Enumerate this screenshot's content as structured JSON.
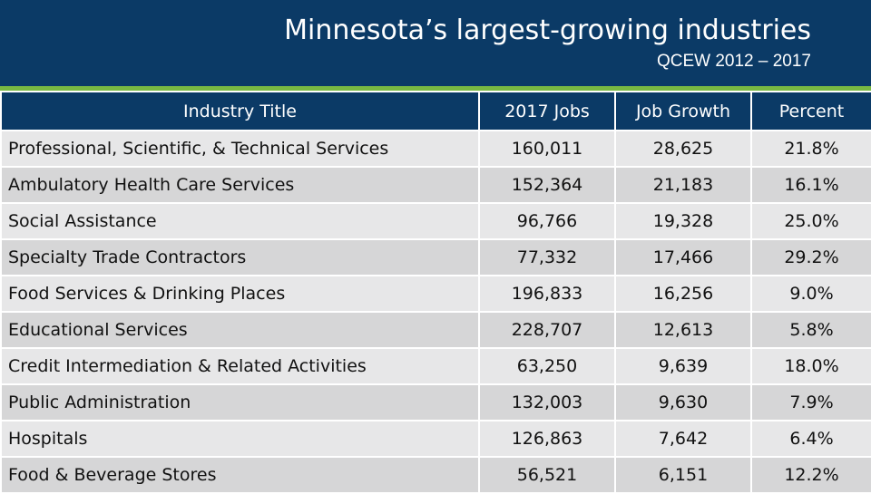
{
  "header": {
    "title": "Minnesota’s largest-growing industries",
    "subtitle": "QCEW 2012 – 2017"
  },
  "colors": {
    "banner": "#0b3a66",
    "accent_rule": "#78b842",
    "row_light": "#e7e7e8",
    "row_dark": "#d6d6d7"
  },
  "table": {
    "columns": [
      "Industry Title",
      "2017 Jobs",
      "Job Growth",
      "Percent"
    ],
    "rows": [
      [
        "Professional, Scientific, & Technical Services",
        "160,011",
        "28,625",
        "21.8%"
      ],
      [
        "Ambulatory Health Care Services",
        "152,364",
        "21,183",
        "16.1%"
      ],
      [
        "Social Assistance",
        "96,766",
        "19,328",
        "25.0%"
      ],
      [
        "Specialty Trade Contractors",
        "77,332",
        "17,466",
        "29.2%"
      ],
      [
        "Food Services & Drinking Places",
        "196,833",
        "16,256",
        "9.0%"
      ],
      [
        "Educational Services",
        "228,707",
        "12,613",
        "5.8%"
      ],
      [
        "Credit Intermediation & Related Activities",
        "63,250",
        "9,639",
        "18.0%"
      ],
      [
        "Public Administration",
        "132,003",
        "9,630",
        "7.9%"
      ],
      [
        "Hospitals",
        "126,863",
        "7,642",
        "6.4%"
      ],
      [
        "Food & Beverage Stores",
        "56,521",
        "6,151",
        "12.2%"
      ]
    ]
  }
}
